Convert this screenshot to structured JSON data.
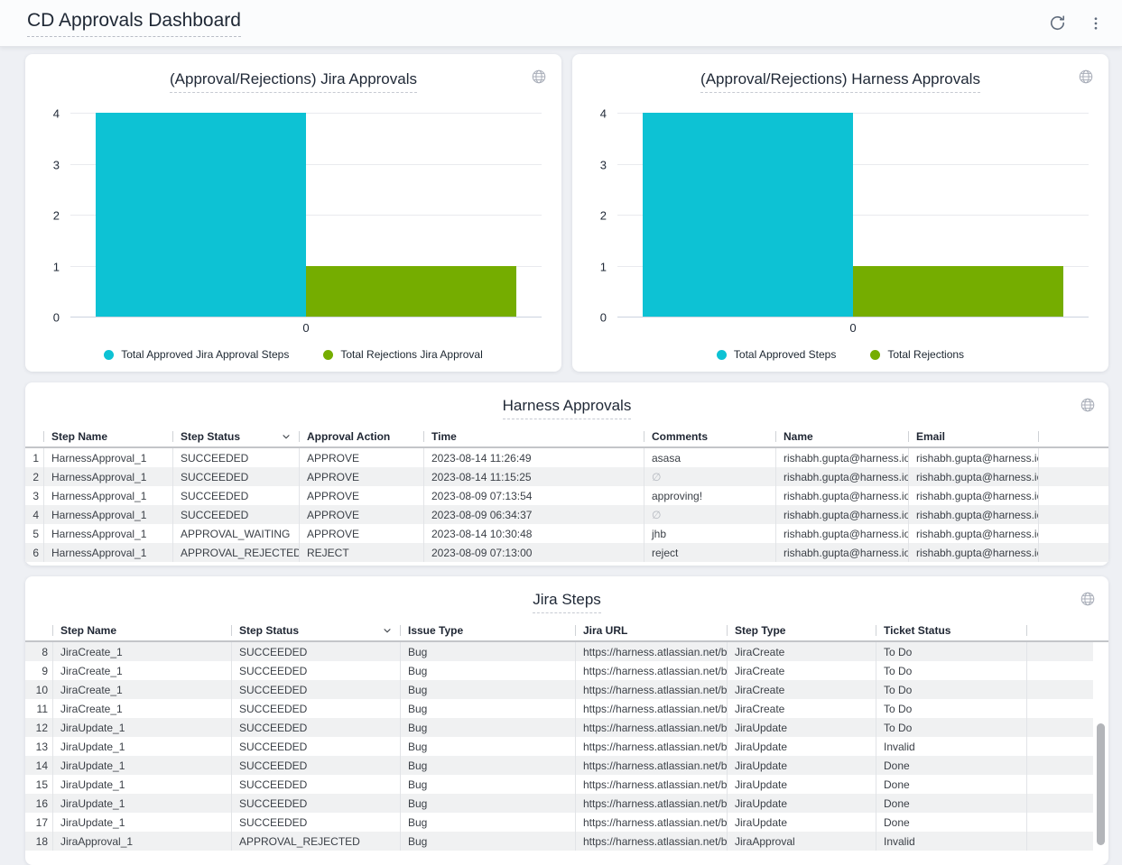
{
  "header": {
    "title": "CD Approvals Dashboard"
  },
  "chart_data": [
    {
      "type": "bar",
      "title": "(Approval/Rejections) Jira Approvals",
      "categories": [
        "0"
      ],
      "series": [
        {
          "name": "Total Approved Jira Approval Steps",
          "values": [
            4
          ],
          "color": "#0dc2d4"
        },
        {
          "name": "Total Rejections Jira Approval",
          "values": [
            1
          ],
          "color": "#75ad00"
        }
      ],
      "ylim": [
        0,
        4
      ],
      "y_ticks": [
        0,
        1,
        2,
        3,
        4
      ],
      "xlabel": "",
      "ylabel": "",
      "grid": true,
      "legend_position": "bottom"
    },
    {
      "type": "bar",
      "title": "(Approval/Rejections) Harness Approvals",
      "categories": [
        "0"
      ],
      "series": [
        {
          "name": "Total Approved Steps",
          "values": [
            4
          ],
          "color": "#0dc2d4"
        },
        {
          "name": "Total Rejections",
          "values": [
            1
          ],
          "color": "#75ad00"
        }
      ],
      "ylim": [
        0,
        4
      ],
      "y_ticks": [
        0,
        1,
        2,
        3,
        4
      ],
      "xlabel": "",
      "ylabel": "",
      "grid": true,
      "legend_position": "bottom"
    }
  ],
  "tables": [
    {
      "title": "Harness Approvals",
      "columns": [
        {
          "label": "Step Name"
        },
        {
          "label": "Step Status",
          "sort_indicator": "down"
        },
        {
          "label": "Approval Action"
        },
        {
          "label": "Time"
        },
        {
          "label": "Comments"
        },
        {
          "label": "Name"
        },
        {
          "label": "Email"
        }
      ],
      "rows": [
        {
          "num": "1",
          "cells": [
            "HarnessApproval_1",
            "SUCCEEDED",
            "APPROVE",
            "2023-08-14 11:26:49",
            "asasa",
            "rishabh.gupta@harness.io",
            "rishabh.gupta@harness.io"
          ]
        },
        {
          "num": "2",
          "cells": [
            "HarnessApproval_1",
            "SUCCEEDED",
            "APPROVE",
            "2023-08-14 11:15:25",
            "∅",
            "rishabh.gupta@harness.io",
            "rishabh.gupta@harness.io"
          ]
        },
        {
          "num": "3",
          "cells": [
            "HarnessApproval_1",
            "SUCCEEDED",
            "APPROVE",
            "2023-08-09 07:13:54",
            "approving!",
            "rishabh.gupta@harness.io",
            "rishabh.gupta@harness.io"
          ]
        },
        {
          "num": "4",
          "cells": [
            "HarnessApproval_1",
            "SUCCEEDED",
            "APPROVE",
            "2023-08-09 06:34:37",
            "∅",
            "rishabh.gupta@harness.io",
            "rishabh.gupta@harness.io"
          ]
        },
        {
          "num": "5",
          "cells": [
            "HarnessApproval_1",
            "APPROVAL_WAITING",
            "APPROVE",
            "2023-08-14 10:30:48",
            "jhb",
            "rishabh.gupta@harness.io",
            "rishabh.gupta@harness.io"
          ]
        },
        {
          "num": "6",
          "cells": [
            "HarnessApproval_1",
            "APPROVAL_REJECTED",
            "REJECT",
            "2023-08-09 07:13:00",
            "reject",
            "rishabh.gupta@harness.io",
            "rishabh.gupta@harness.io"
          ]
        }
      ]
    },
    {
      "title": "Jira Steps",
      "columns": [
        {
          "label": "Step Name"
        },
        {
          "label": "Step Status",
          "sort_indicator": "down"
        },
        {
          "label": "Issue Type"
        },
        {
          "label": "Jira URL"
        },
        {
          "label": "Step Type"
        },
        {
          "label": "Ticket Status"
        }
      ],
      "rows": [
        {
          "num": "8",
          "cells": [
            "JiraCreate_1",
            "SUCCEEDED",
            "Bug",
            "https://harness.atlassian.net/b...",
            "JiraCreate",
            "To Do"
          ]
        },
        {
          "num": "9",
          "cells": [
            "JiraCreate_1",
            "SUCCEEDED",
            "Bug",
            "https://harness.atlassian.net/b...",
            "JiraCreate",
            "To Do"
          ]
        },
        {
          "num": "10",
          "cells": [
            "JiraCreate_1",
            "SUCCEEDED",
            "Bug",
            "https://harness.atlassian.net/b...",
            "JiraCreate",
            "To Do"
          ]
        },
        {
          "num": "11",
          "cells": [
            "JiraCreate_1",
            "SUCCEEDED",
            "Bug",
            "https://harness.atlassian.net/b...",
            "JiraCreate",
            "To Do"
          ]
        },
        {
          "num": "12",
          "cells": [
            "JiraUpdate_1",
            "SUCCEEDED",
            "Bug",
            "https://harness.atlassian.net/b...",
            "JiraUpdate",
            "To Do"
          ]
        },
        {
          "num": "13",
          "cells": [
            "JiraUpdate_1",
            "SUCCEEDED",
            "Bug",
            "https://harness.atlassian.net/b...",
            "JiraUpdate",
            "Invalid"
          ]
        },
        {
          "num": "14",
          "cells": [
            "JiraUpdate_1",
            "SUCCEEDED",
            "Bug",
            "https://harness.atlassian.net/b...",
            "JiraUpdate",
            "Done"
          ]
        },
        {
          "num": "15",
          "cells": [
            "JiraUpdate_1",
            "SUCCEEDED",
            "Bug",
            "https://harness.atlassian.net/b...",
            "JiraUpdate",
            "Done"
          ]
        },
        {
          "num": "16",
          "cells": [
            "JiraUpdate_1",
            "SUCCEEDED",
            "Bug",
            "https://harness.atlassian.net/b...",
            "JiraUpdate",
            "Done"
          ]
        },
        {
          "num": "17",
          "cells": [
            "JiraUpdate_1",
            "SUCCEEDED",
            "Bug",
            "https://harness.atlassian.net/b...",
            "JiraUpdate",
            "Done"
          ]
        },
        {
          "num": "18",
          "cells": [
            "JiraApproval_1",
            "APPROVAL_REJECTED",
            "Bug",
            "https://harness.atlassian.net/b...",
            "JiraApproval",
            "Invalid"
          ]
        }
      ]
    }
  ],
  "null_symbol": "∅"
}
